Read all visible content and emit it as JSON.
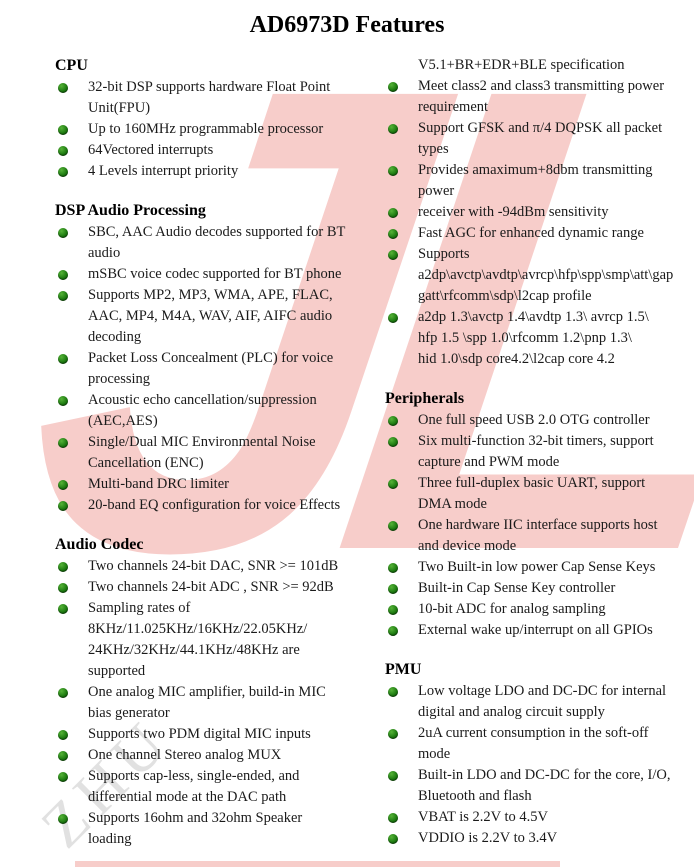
{
  "title": "AD6973D Features",
  "watermarks": {
    "logo_text": "JL",
    "diagonal_text": "ZHU",
    "logo_color": "#f7cdca",
    "diagonal_color": "#c9c9c9"
  },
  "colors": {
    "bullet_green": "#1d7a10",
    "body_text": "#1a1a1a",
    "background": "#ffffff"
  },
  "columns": [
    {
      "sections": [
        {
          "title": "CPU",
          "items": [
            {
              "bullet": true,
              "text": "32-bit DSP supports hardware Float Point\nUnit(FPU)"
            },
            {
              "bullet": true,
              "text": "Up to 160MHz programmable processor"
            },
            {
              "bullet": true,
              "text": "64Vectored interrupts"
            },
            {
              "bullet": true,
              "text": "4 Levels interrupt priority"
            }
          ]
        },
        {
          "title": "DSP Audio Processing",
          "items": [
            {
              "bullet": true,
              "text": "SBC, AAC Audio decodes supported for BT\naudio"
            },
            {
              "bullet": true,
              "text": "mSBC voice codec supported for BT phone"
            },
            {
              "bullet": true,
              "text": "Supports MP2, MP3, WMA, APE, FLAC,\nAAC, MP4, M4A, WAV, AIF, AIFC audio\ndecoding"
            },
            {
              "bullet": true,
              "text": "Packet Loss Concealment (PLC) for voice\nprocessing"
            },
            {
              "bullet": true,
              "text": "Acoustic echo cancellation/suppression\n(AEC,AES)"
            },
            {
              "bullet": true,
              "text": "Single/Dual MIC Environmental Noise\nCancellation (ENC)"
            },
            {
              "bullet": true,
              "text": "Multi-band DRC limiter"
            },
            {
              "bullet": true,
              "text": "20-band EQ configuration for voice Effects"
            }
          ]
        },
        {
          "title": "Audio Codec",
          "items": [
            {
              "bullet": true,
              "text": "Two channels 24-bit DAC, SNR >= 101dB"
            },
            {
              "bullet": true,
              "text": "Two channels 24-bit ADC , SNR >= 92dB"
            },
            {
              "bullet": true,
              "text": "Sampling rates of\n8KHz/11.025KHz/16KHz/22.05KHz/\n24KHz/32KHz/44.1KHz/48KHz are\nsupported"
            },
            {
              "bullet": true,
              "text": "One analog MIC amplifier, build-in MIC\nbias generator"
            },
            {
              "bullet": true,
              "text": "Supports two PDM digital MIC inputs"
            },
            {
              "bullet": true,
              "text": "One channel Stereo analog MUX"
            },
            {
              "bullet": true,
              "text": "Supports cap-less, single-ended, and\ndifferential mode at the DAC path"
            },
            {
              "bullet": true,
              "text": "Supports 16ohm and 32ohm Speaker\nloading"
            }
          ]
        }
      ]
    },
    {
      "sections": [
        {
          "title": null,
          "items": [
            {
              "bullet": false,
              "text": "V5.1+BR+EDR+BLE specification"
            },
            {
              "bullet": true,
              "text": "Meet class2 and class3 transmitting power\nrequirement"
            },
            {
              "bullet": true,
              "text": "Support GFSK and π/4 DQPSK all packet\ntypes"
            },
            {
              "bullet": true,
              "text": "Provides amaximum+8dbm transmitting\npower"
            },
            {
              "bullet": true,
              "text": "receiver with -94dBm sensitivity"
            },
            {
              "bullet": true,
              "text": "Fast AGC for enhanced dynamic range"
            },
            {
              "bullet": true,
              "text": "Supports\na2dp\\avctp\\avdtp\\avrcp\\hfp\\spp\\smp\\att\\gap\ngatt\\rfcomm\\sdp\\l2cap profile"
            },
            {
              "bullet": true,
              "text": "a2dp 1.3\\avctp 1.4\\avdtp 1.3\\ avrcp 1.5\\\nhfp 1.5 \\spp 1.0\\rfcomm 1.2\\pnp 1.3\\\nhid 1.0\\sdp core4.2\\l2cap core 4.2"
            }
          ]
        },
        {
          "title": "Peripherals",
          "items": [
            {
              "bullet": true,
              "text": "One full speed USB 2.0 OTG controller"
            },
            {
              "bullet": true,
              "text": "Six multi-function 32-bit timers, support\ncapture and PWM mode"
            },
            {
              "bullet": true,
              "text": "Three full-duplex basic UART, support\nDMA mode"
            },
            {
              "bullet": true,
              "text": "One hardware IIC interface supports host\nand device mode"
            },
            {
              "bullet": true,
              "text": "Two Built-in low power Cap Sense Keys"
            },
            {
              "bullet": true,
              "text": "Built-in Cap Sense Key controller"
            },
            {
              "bullet": true,
              "text": "10-bit ADC for analog sampling"
            },
            {
              "bullet": true,
              "text": "External wake up/interrupt on all GPIOs"
            }
          ]
        },
        {
          "title": "PMU",
          "items": [
            {
              "bullet": true,
              "text": "Low voltage LDO and DC-DC for internal\ndigital and analog circuit supply"
            },
            {
              "bullet": true,
              "text": "2uA current consumption in the soft-off\nmode"
            },
            {
              "bullet": true,
              "text": "Built-in LDO and DC-DC for the core, I/O,\nBluetooth and flash"
            },
            {
              "bullet": true,
              "text": "VBAT is 2.2V to 4.5V"
            },
            {
              "bullet": true,
              "text": "VDDIO is 2.2V to 3.4V"
            }
          ]
        }
      ]
    }
  ]
}
